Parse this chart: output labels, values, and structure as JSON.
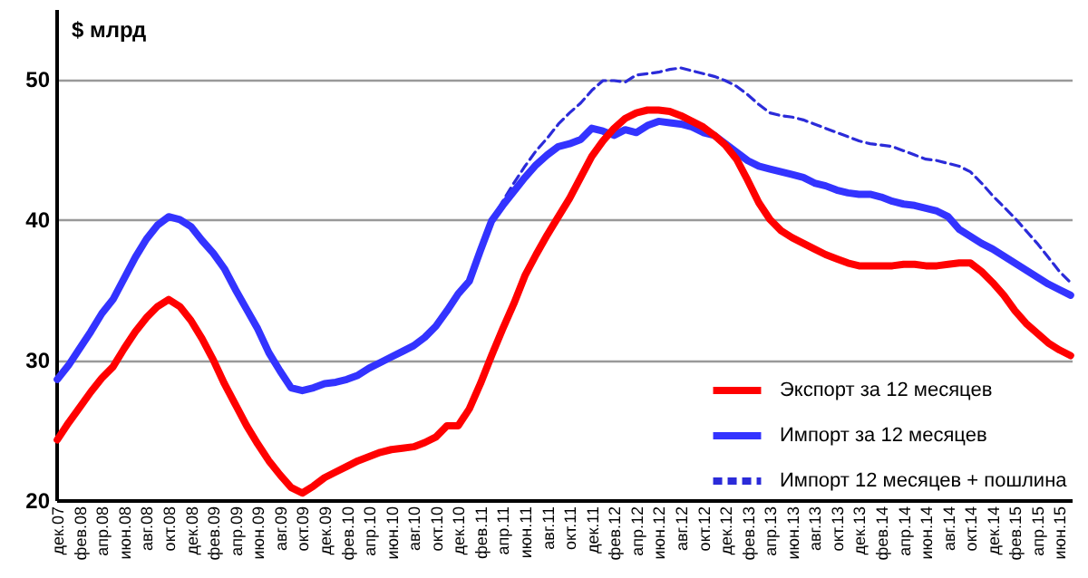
{
  "chart_data": {
    "type": "line",
    "ylabel": "$ млрд",
    "categories": [
      "дек.07",
      null,
      "фев.08",
      null,
      "апр.08",
      null,
      "июн.08",
      null,
      "авг.08",
      null,
      "окт.08",
      null,
      "дек.08",
      null,
      "фев.09",
      null,
      "апр.09",
      null,
      "июн.09",
      null,
      "авг.09",
      null,
      "окт.09",
      null,
      "дек.09",
      null,
      "фев.10",
      null,
      "апр.10",
      null,
      "июн.10",
      null,
      "авг.10",
      null,
      "окт.10",
      null,
      "дек.10",
      null,
      "фев.11",
      null,
      "апр.11",
      null,
      "июн.11",
      null,
      "авг.11",
      null,
      "окт.11",
      null,
      "дек.11",
      null,
      "фев.12",
      null,
      "апр.12",
      null,
      "июн.12",
      null,
      "авг.12",
      null,
      "окт.12",
      null,
      "дек.12",
      null,
      "фев.13",
      null,
      "апр.13",
      null,
      "июн.13",
      null,
      "авг.13",
      null,
      "окт.13",
      null,
      "дек.13",
      null,
      "фев.14",
      null,
      "апр.14",
      null,
      "июн.14",
      null,
      "авг.14",
      null,
      "окт.14",
      null,
      "дек.14",
      null,
      "фев.15",
      null,
      "апр.15",
      null,
      "июн.15",
      null
    ],
    "series": [
      {
        "name": "Экспорт за 12 месяцев",
        "color": "#ff0000",
        "line_style": "solid",
        "values": [
          24.3,
          25.5,
          26.6,
          27.7,
          28.7,
          29.5,
          30.8,
          32.0,
          33.0,
          33.8,
          34.3,
          33.8,
          32.8,
          31.5,
          30.0,
          28.3,
          26.8,
          25.3,
          24.0,
          22.8,
          21.8,
          20.9,
          20.5,
          21.0,
          21.6,
          22.0,
          22.4,
          22.8,
          23.1,
          23.4,
          23.6,
          23.7,
          23.8,
          24.1,
          24.5,
          25.3,
          25.3,
          26.5,
          28.3,
          30.3,
          32.2,
          34.0,
          36.0,
          37.5,
          38.9,
          40.2,
          41.5,
          43.0,
          44.5,
          45.6,
          46.5,
          47.2,
          47.6,
          47.8,
          47.8,
          47.7,
          47.4,
          47.0,
          46.6,
          46.0,
          45.3,
          44.3,
          42.8,
          41.2,
          40.0,
          39.2,
          38.7,
          38.3,
          37.9,
          37.5,
          37.2,
          36.9,
          36.7,
          36.7,
          36.7,
          36.7,
          36.8,
          36.8,
          36.7,
          36.7,
          36.8,
          36.9,
          36.9,
          36.3,
          35.5,
          34.6,
          33.5,
          32.6,
          31.9,
          31.2,
          30.7,
          30.3
        ]
      },
      {
        "name": "Импорт за 12 месяцев",
        "color": "#3333ff",
        "line_style": "solid",
        "values": [
          28.6,
          29.6,
          30.8,
          32.0,
          33.3,
          34.3,
          35.8,
          37.3,
          38.6,
          39.6,
          40.2,
          40.0,
          39.5,
          38.5,
          37.6,
          36.5,
          35.0,
          33.6,
          32.2,
          30.5,
          29.2,
          28.0,
          27.8,
          28.0,
          28.3,
          28.4,
          28.6,
          28.9,
          29.4,
          29.8,
          30.2,
          30.6,
          31.0,
          31.6,
          32.4,
          33.5,
          34.7,
          35.6,
          37.8,
          39.9,
          41.0,
          42.0,
          43.0,
          43.9,
          44.6,
          45.2,
          45.4,
          45.7,
          46.5,
          46.3,
          46.0,
          46.4,
          46.2,
          46.7,
          47.0,
          46.9,
          46.8,
          46.6,
          46.2,
          46.0,
          45.4,
          44.8,
          44.2,
          43.8,
          43.6,
          43.4,
          43.2,
          43.0,
          42.6,
          42.4,
          42.1,
          41.9,
          41.8,
          41.8,
          41.6,
          41.3,
          41.1,
          41.0,
          40.8,
          40.6,
          40.2,
          39.3,
          38.8,
          38.3,
          37.9,
          37.4,
          36.9,
          36.4,
          35.9,
          35.4,
          35.0,
          34.6
        ]
      },
      {
        "name": "Импорт 12 месяцев + пошлина",
        "color": "#2b2bd9",
        "line_style": "dashed",
        "values": [
          null,
          null,
          null,
          null,
          null,
          null,
          null,
          null,
          null,
          null,
          null,
          null,
          null,
          null,
          null,
          null,
          null,
          null,
          null,
          null,
          null,
          null,
          null,
          null,
          null,
          null,
          null,
          null,
          null,
          null,
          null,
          null,
          null,
          null,
          null,
          null,
          null,
          null,
          null,
          39.9,
          41.3,
          42.6,
          43.8,
          44.9,
          45.8,
          46.8,
          47.6,
          48.3,
          49.2,
          49.9,
          49.9,
          49.8,
          50.3,
          50.4,
          50.5,
          50.7,
          50.8,
          50.6,
          50.4,
          50.2,
          49.9,
          49.5,
          48.9,
          48.2,
          47.6,
          47.4,
          47.3,
          47.1,
          46.8,
          46.5,
          46.2,
          45.9,
          45.6,
          45.4,
          45.3,
          45.2,
          44.9,
          44.6,
          44.3,
          44.2,
          44.0,
          43.8,
          43.4,
          42.6,
          41.7,
          40.9,
          40.1,
          39.2,
          38.3,
          37.3,
          36.3,
          35.5
        ]
      }
    ],
    "ylim": [
      20,
      55
    ],
    "yticks": [
      20,
      30,
      40,
      50
    ],
    "grid": "y",
    "legend": "bottom right",
    "marker": "none"
  }
}
